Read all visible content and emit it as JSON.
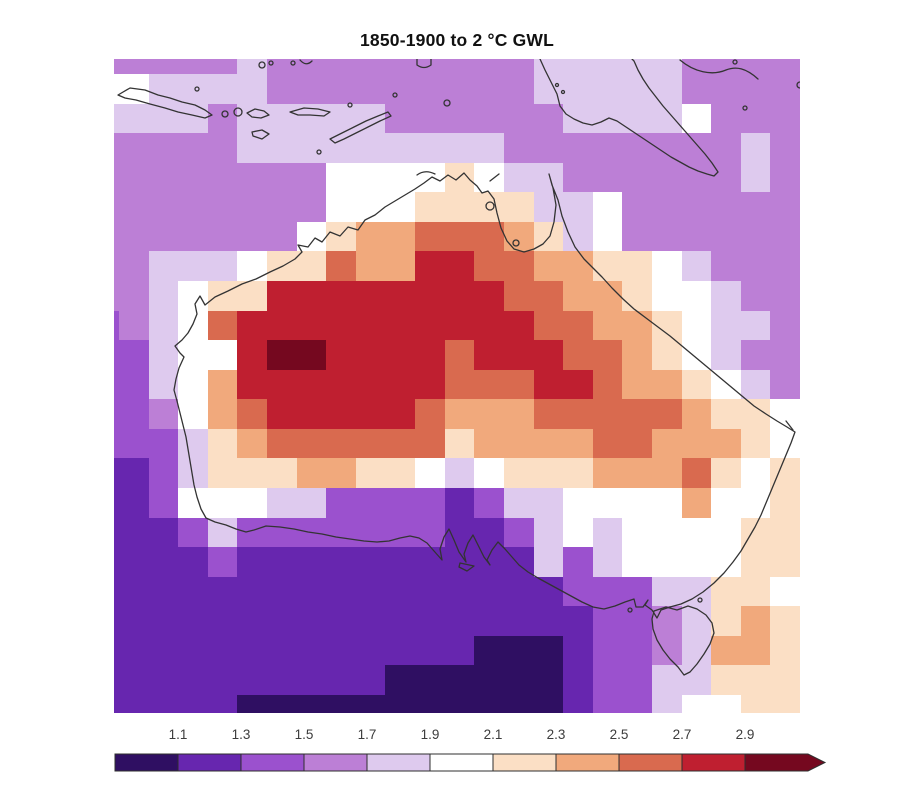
{
  "page": {
    "background": "#ffffff"
  },
  "chart_data": {
    "type": "heatmap",
    "title": "1850-1900 to 2 °C GWL",
    "unit": "°C",
    "legend_position": "bottom",
    "grid_lines": false,
    "colorbar": {
      "orientation": "horizontal",
      "arrow_right": true,
      "ticks": [
        "1.1",
        "1.3",
        "1.5",
        "1.7",
        "1.9",
        "2.1",
        "2.3",
        "2.5",
        "2.7",
        "2.9"
      ],
      "bin_labels": [
        "<1.1",
        "1.1-1.3",
        "1.3-1.5",
        "1.5-1.7",
        "1.7-1.9",
        "1.9-2.1",
        "2.1-2.3",
        "2.3-2.5",
        "2.5-2.7",
        "2.7-2.9",
        ">2.9"
      ],
      "palette": [
        "#2f0f62",
        "#6726af",
        "#9b51ce",
        "#bc7fd6",
        "#decaee",
        "#ffffff",
        "#fbdfc5",
        "#f1a97c",
        "#d96a4f",
        "#bf1f30",
        "#75081f"
      ]
    },
    "map_region": "Australia and surrounding seas",
    "grid": {
      "rows": 23,
      "cols": 24,
      "palette_index": [
        [
          3,
          3,
          3,
          3,
          3,
          4,
          3,
          3,
          3,
          3,
          3,
          3,
          3,
          3,
          3,
          4,
          4,
          4,
          4,
          4,
          3,
          3,
          3,
          3
        ],
        [
          5,
          5,
          4,
          4,
          4,
          4,
          3,
          3,
          3,
          3,
          3,
          3,
          3,
          3,
          3,
          4,
          4,
          4,
          4,
          4,
          3,
          3,
          3,
          3
        ],
        [
          4,
          4,
          4,
          4,
          3,
          4,
          4,
          4,
          4,
          4,
          3,
          3,
          3,
          3,
          3,
          3,
          4,
          4,
          4,
          4,
          5,
          3,
          3,
          3
        ],
        [
          3,
          3,
          3,
          3,
          3,
          4,
          4,
          4,
          4,
          4,
          4,
          4,
          4,
          4,
          3,
          3,
          3,
          3,
          3,
          3,
          3,
          3,
          4,
          3
        ],
        [
          3,
          3,
          3,
          3,
          3,
          3,
          3,
          3,
          5,
          5,
          5,
          5,
          6,
          5,
          4,
          4,
          3,
          3,
          3,
          3,
          3,
          3,
          4,
          3
        ],
        [
          3,
          3,
          3,
          3,
          3,
          3,
          3,
          3,
          5,
          5,
          5,
          6,
          6,
          6,
          6,
          4,
          4,
          5,
          3,
          3,
          3,
          3,
          3,
          3
        ],
        [
          3,
          3,
          3,
          3,
          3,
          3,
          3,
          5,
          6,
          7,
          7,
          8,
          8,
          8,
          7,
          6,
          4,
          5,
          3,
          3,
          3,
          3,
          3,
          3
        ],
        [
          3,
          3,
          4,
          4,
          4,
          5,
          6,
          6,
          8,
          7,
          7,
          9,
          9,
          8,
          8,
          7,
          7,
          6,
          6,
          5,
          4,
          3,
          3,
          3
        ],
        [
          3,
          3,
          4,
          5,
          6,
          6,
          9,
          9,
          9,
          9,
          9,
          9,
          9,
          9,
          8,
          8,
          7,
          7,
          6,
          5,
          5,
          4,
          3,
          3
        ],
        [
          2,
          3,
          4,
          5,
          8,
          9,
          9,
          9,
          9,
          9,
          9,
          9,
          9,
          9,
          9,
          8,
          8,
          7,
          7,
          6,
          5,
          4,
          4,
          3
        ],
        [
          2,
          2,
          4,
          5,
          5,
          9,
          10,
          10,
          9,
          9,
          9,
          9,
          8,
          9,
          9,
          9,
          8,
          8,
          7,
          6,
          5,
          4,
          3,
          3
        ],
        [
          2,
          2,
          4,
          5,
          7,
          9,
          9,
          9,
          9,
          9,
          9,
          9,
          8,
          8,
          8,
          9,
          9,
          8,
          7,
          7,
          6,
          5,
          4,
          3
        ],
        [
          2,
          2,
          3,
          5,
          7,
          8,
          9,
          9,
          9,
          9,
          9,
          8,
          7,
          7,
          7,
          8,
          8,
          8,
          8,
          8,
          7,
          6,
          6,
          5
        ],
        [
          2,
          2,
          2,
          4,
          6,
          7,
          8,
          8,
          8,
          8,
          8,
          8,
          6,
          7,
          7,
          7,
          7,
          8,
          8,
          7,
          7,
          7,
          6,
          5
        ],
        [
          1,
          1,
          2,
          4,
          6,
          6,
          6,
          7,
          7,
          6,
          6,
          5,
          4,
          5,
          6,
          6,
          6,
          7,
          7,
          7,
          8,
          6,
          5,
          6
        ],
        [
          1,
          1,
          2,
          5,
          5,
          5,
          4,
          4,
          2,
          2,
          2,
          2,
          1,
          2,
          4,
          4,
          5,
          5,
          5,
          5,
          7,
          5,
          5,
          6
        ],
        [
          1,
          1,
          1,
          2,
          4,
          2,
          2,
          2,
          2,
          2,
          2,
          2,
          1,
          1,
          2,
          4,
          5,
          4,
          5,
          5,
          5,
          5,
          6,
          6
        ],
        [
          1,
          1,
          1,
          1,
          2,
          1,
          1,
          1,
          1,
          1,
          1,
          1,
          1,
          1,
          1,
          4,
          2,
          4,
          5,
          5,
          5,
          5,
          6,
          6
        ],
        [
          1,
          1,
          1,
          1,
          1,
          1,
          1,
          1,
          1,
          1,
          1,
          1,
          1,
          1,
          1,
          1,
          2,
          2,
          2,
          4,
          4,
          6,
          6,
          5
        ],
        [
          1,
          1,
          1,
          1,
          1,
          1,
          1,
          1,
          1,
          1,
          1,
          1,
          1,
          1,
          1,
          1,
          1,
          2,
          2,
          3,
          4,
          6,
          7,
          6
        ],
        [
          1,
          1,
          1,
          1,
          1,
          1,
          1,
          1,
          1,
          1,
          1,
          1,
          1,
          0,
          0,
          0,
          1,
          2,
          2,
          3,
          4,
          7,
          7,
          6
        ],
        [
          1,
          1,
          1,
          1,
          1,
          1,
          1,
          1,
          1,
          1,
          0,
          0,
          0,
          0,
          0,
          0,
          1,
          2,
          2,
          4,
          4,
          6,
          6,
          6
        ],
        [
          1,
          1,
          1,
          1,
          1,
          0,
          0,
          0,
          0,
          0,
          0,
          0,
          0,
          0,
          0,
          0,
          1,
          2,
          2,
          4,
          5,
          5,
          6,
          6
        ]
      ]
    },
    "coastline_color": "#333333"
  }
}
